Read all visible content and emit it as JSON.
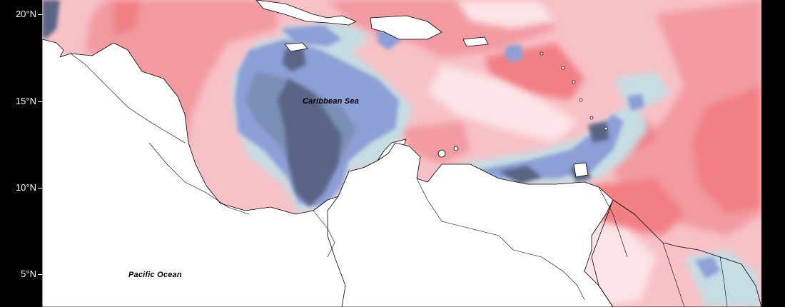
{
  "map": {
    "latitude_ticks": [
      "20°N",
      "15°N",
      "10°N",
      "5°N"
    ],
    "labels": {
      "caribbean": "Caribbean Sea",
      "pacific": "Pacific Ocean"
    },
    "colors": {
      "dark_blue": "#5a6585",
      "mid_blue": "#7a8fb5",
      "light_blue": "#8c9fd6",
      "pale_blue": "#c5dde3",
      "pale_pink": "#fbe3e6",
      "light_pink": "#f7c1c6",
      "mid_pink": "#f29aa0",
      "salmon": "#f17f84",
      "land": "#ffffff",
      "coastline": "#000000"
    }
  }
}
